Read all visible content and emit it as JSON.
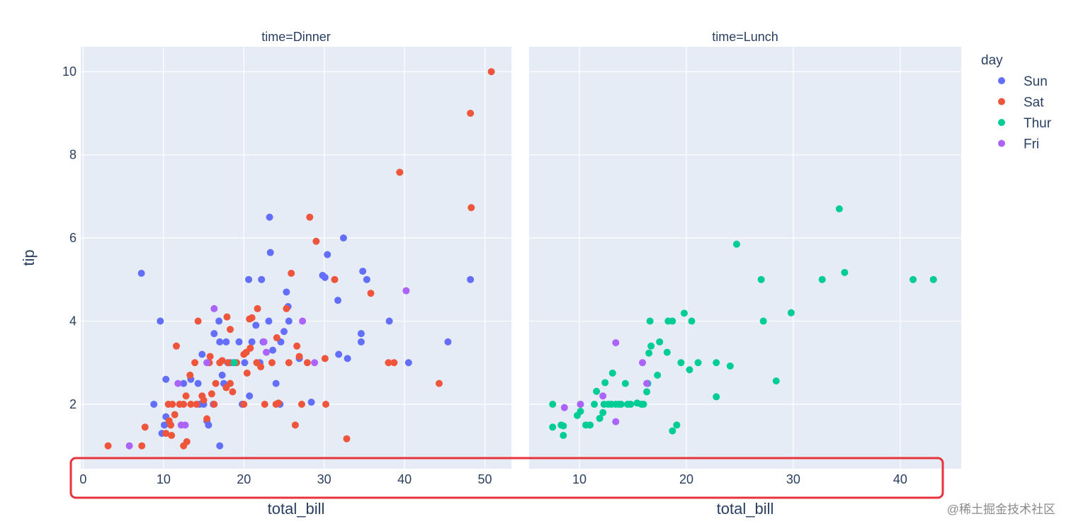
{
  "chart_data": {
    "type": "scatter",
    "y_label": "tip",
    "legend": {
      "title": "day",
      "placement": "right",
      "items": [
        {
          "name": "Sun",
          "color": "#636efa"
        },
        {
          "name": "Sat",
          "color": "#EF553B"
        },
        {
          "name": "Thur",
          "color": "#00cc96"
        },
        {
          "name": "Fri",
          "color": "#ab63fa"
        }
      ]
    },
    "ylim": [
      0.45,
      10.6
    ],
    "y_ticks": [
      "2",
      "4",
      "6",
      "8",
      "10"
    ],
    "grid": true,
    "facets": [
      {
        "title": "time=Dinner",
        "x_label": "total_bill",
        "xlim": [
          -0.3,
          53.3
        ],
        "x_ticks": [
          "0",
          "10",
          "20",
          "30",
          "40",
          "50"
        ],
        "series": [
          {
            "name": "Sun",
            "points": [
              [
                7.25,
                5.15
              ],
              [
                9.6,
                4.0
              ],
              [
                10.3,
                2.6
              ],
              [
                10.3,
                1.7
              ],
              [
                10.1,
                1.5
              ],
              [
                8.8,
                2.0
              ],
              [
                9.8,
                1.3
              ],
              [
                12.5,
                2.5
              ],
              [
                13.4,
                2.6
              ],
              [
                14.3,
                2.5
              ],
              [
                14.5,
                2.0
              ],
              [
                14.8,
                3.2
              ],
              [
                15.0,
                2.0
              ],
              [
                15.4,
                1.6
              ],
              [
                15.6,
                1.5
              ],
              [
                16.2,
                2.0
              ],
              [
                16.3,
                3.7
              ],
              [
                16.9,
                4.0
              ],
              [
                17.0,
                3.5
              ],
              [
                17.3,
                2.7
              ],
              [
                17.5,
                2.5
              ],
              [
                17.8,
                3.5
              ],
              [
                18.0,
                3.0
              ],
              [
                17.0,
                1.0
              ],
              [
                18.3,
                3.0
              ],
              [
                18.7,
                3.0
              ],
              [
                19.4,
                3.5
              ],
              [
                19.8,
                2.0
              ],
              [
                20.1,
                3.0
              ],
              [
                20.6,
                5.0
              ],
              [
                20.7,
                2.2
              ],
              [
                21.0,
                3.5
              ],
              [
                21.5,
                3.9
              ],
              [
                22.0,
                3.0
              ],
              [
                22.2,
                5.0
              ],
              [
                22.4,
                3.5
              ],
              [
                23.1,
                4.0
              ],
              [
                23.3,
                5.65
              ],
              [
                23.2,
                6.5
              ],
              [
                23.6,
                3.3
              ],
              [
                24.0,
                2.5
              ],
              [
                24.5,
                2.0
              ],
              [
                24.6,
                3.5
              ],
              [
                25.0,
                3.75
              ],
              [
                25.3,
                4.7
              ],
              [
                25.5,
                4.35
              ],
              [
                25.6,
                4.0
              ],
              [
                26.9,
                3.1
              ],
              [
                28.4,
                2.05
              ],
              [
                29.8,
                5.1
              ],
              [
                30.1,
                5.05
              ],
              [
                30.4,
                5.6
              ],
              [
                31.7,
                4.5
              ],
              [
                31.8,
                3.2
              ],
              [
                32.4,
                6.0
              ],
              [
                32.9,
                3.1
              ],
              [
                34.6,
                3.5
              ],
              [
                34.6,
                3.7
              ],
              [
                34.8,
                5.2
              ],
              [
                35.3,
                5.0
              ],
              [
                38.1,
                4.0
              ],
              [
                40.5,
                3.0
              ],
              [
                45.4,
                3.5
              ],
              [
                48.2,
                5.0
              ]
            ]
          },
          {
            "name": "Sat",
            "points": [
              [
                3.1,
                1.0
              ],
              [
                7.3,
                1.0
              ],
              [
                7.7,
                1.45
              ],
              [
                10.3,
                1.3
              ],
              [
                10.6,
                2.0
              ],
              [
                10.7,
                1.6
              ],
              [
                10.9,
                1.5
              ],
              [
                11.1,
                2.0
              ],
              [
                11.0,
                1.25
              ],
              [
                11.4,
                1.75
              ],
              [
                11.6,
                3.4
              ],
              [
                12.0,
                2.0
              ],
              [
                12.5,
                1.0
              ],
              [
                12.5,
                2.0
              ],
              [
                12.8,
                2.2
              ],
              [
                12.9,
                1.1
              ],
              [
                13.3,
                2.7
              ],
              [
                13.4,
                2.0
              ],
              [
                13.9,
                3.0
              ],
              [
                14.1,
                2.0
              ],
              [
                14.3,
                4.0
              ],
              [
                14.8,
                2.2
              ],
              [
                15.0,
                2.1
              ],
              [
                15.4,
                1.65
              ],
              [
                15.7,
                3.0
              ],
              [
                15.8,
                3.15
              ],
              [
                16.0,
                2.25
              ],
              [
                16.3,
                2.0
              ],
              [
                16.5,
                2.5
              ],
              [
                17.0,
                3.0
              ],
              [
                17.3,
                3.05
              ],
              [
                17.8,
                2.4
              ],
              [
                17.9,
                4.1
              ],
              [
                18.1,
                3.0
              ],
              [
                18.3,
                3.8
              ],
              [
                18.3,
                2.5
              ],
              [
                18.6,
                2.3
              ],
              [
                19.1,
                3.0
              ],
              [
                20.0,
                3.2
              ],
              [
                20.0,
                2.0
              ],
              [
                20.3,
                3.25
              ],
              [
                20.4,
                2.75
              ],
              [
                20.8,
                3.35
              ],
              [
                20.7,
                4.05
              ],
              [
                21.0,
                4.08
              ],
              [
                21.6,
                3.0
              ],
              [
                21.7,
                4.3
              ],
              [
                22.1,
                2.9
              ],
              [
                22.6,
                2.0
              ],
              [
                23.5,
                3.0
              ],
              [
                24.0,
                2.0
              ],
              [
                24.1,
                3.6
              ],
              [
                24.3,
                2.03
              ],
              [
                25.3,
                4.3
              ],
              [
                25.6,
                3.0
              ],
              [
                25.9,
                5.15
              ],
              [
                26.4,
                1.5
              ],
              [
                26.6,
                3.4
              ],
              [
                26.9,
                3.15
              ],
              [
                27.2,
                2.0
              ],
              [
                27.9,
                3.0
              ],
              [
                28.2,
                6.5
              ],
              [
                29.0,
                5.92
              ],
              [
                30.1,
                3.1
              ],
              [
                30.2,
                2.0
              ],
              [
                31.3,
                5.0
              ],
              [
                32.8,
                1.17
              ],
              [
                35.8,
                4.67
              ],
              [
                38.0,
                3.0
              ],
              [
                38.7,
                3.0
              ],
              [
                39.4,
                7.58
              ],
              [
                44.3,
                2.5
              ],
              [
                48.2,
                9.0
              ],
              [
                48.3,
                6.73
              ],
              [
                50.8,
                10.0
              ]
            ]
          },
          {
            "name": "Thur",
            "points": [
              [
                18.8,
                3.0
              ]
            ]
          },
          {
            "name": "Fri",
            "points": [
              [
                5.75,
                1.0
              ],
              [
                11.8,
                2.5
              ],
              [
                12.2,
                1.5
              ],
              [
                12.7,
                1.5
              ],
              [
                15.4,
                3.0
              ],
              [
                16.3,
                4.3
              ],
              [
                22.5,
                3.5
              ],
              [
                22.8,
                3.25
              ],
              [
                27.3,
                4.0
              ],
              [
                28.8,
                3.0
              ],
              [
                40.2,
                4.73
              ]
            ]
          }
        ]
      },
      {
        "title": "time=Lunch",
        "x_label": "total_bill",
        "xlim": [
          5.3,
          45.7
        ],
        "x_ticks": [
          "10",
          "20",
          "30",
          "40"
        ],
        "series": [
          {
            "name": "Sun",
            "points": []
          },
          {
            "name": "Sat",
            "points": []
          },
          {
            "name": "Thur",
            "points": [
              [
                7.5,
                2.0
              ],
              [
                7.5,
                1.45
              ],
              [
                8.3,
                1.5
              ],
              [
                8.5,
                1.25
              ],
              [
                8.5,
                1.48
              ],
              [
                9.8,
                1.73
              ],
              [
                10.1,
                2.0
              ],
              [
                10.1,
                1.83
              ],
              [
                10.6,
                1.5
              ],
              [
                11.0,
                1.5
              ],
              [
                11.4,
                2.0
              ],
              [
                11.6,
                2.31
              ],
              [
                11.9,
                1.66
              ],
              [
                12.2,
                1.8
              ],
              [
                12.3,
                2.0
              ],
              [
                12.4,
                2.52
              ],
              [
                12.7,
                2.0
              ],
              [
                13.0,
                2.0
              ],
              [
                13.1,
                2.75
              ],
              [
                13.4,
                2.0
              ],
              [
                13.7,
                2.0
              ],
              [
                13.9,
                2.0
              ],
              [
                14.3,
                2.5
              ],
              [
                14.5,
                2.0
              ],
              [
                14.8,
                2.0
              ],
              [
                15.4,
                2.03
              ],
              [
                15.8,
                2.0
              ],
              [
                16.0,
                2.0
              ],
              [
                16.3,
                2.3
              ],
              [
                16.4,
                2.5
              ],
              [
                16.5,
                3.23
              ],
              [
                16.6,
                4.0
              ],
              [
                16.7,
                3.4
              ],
              [
                17.3,
                2.7
              ],
              [
                17.5,
                3.5
              ],
              [
                18.2,
                3.25
              ],
              [
                18.3,
                4.0
              ],
              [
                18.7,
                4.0
              ],
              [
                18.7,
                1.36
              ],
              [
                19.1,
                1.5
              ],
              [
                19.5,
                3.0
              ],
              [
                19.8,
                4.19
              ],
              [
                20.3,
                2.83
              ],
              [
                20.5,
                4.0
              ],
              [
                21.1,
                3.0
              ],
              [
                22.8,
                3.0
              ],
              [
                22.8,
                2.18
              ],
              [
                24.1,
                2.92
              ],
              [
                24.7,
                5.85
              ],
              [
                27.0,
                5.0
              ],
              [
                27.2,
                4.0
              ],
              [
                28.4,
                2.56
              ],
              [
                29.8,
                4.2
              ],
              [
                32.7,
                5.0
              ],
              [
                34.3,
                6.7
              ],
              [
                34.8,
                5.17
              ],
              [
                41.2,
                5.0
              ],
              [
                43.1,
                5.0
              ]
            ]
          },
          {
            "name": "Fri",
            "points": [
              [
                8.6,
                1.92
              ],
              [
                10.1,
                2.0
              ],
              [
                12.2,
                2.2
              ],
              [
                13.4,
                3.48
              ],
              [
                13.4,
                1.58
              ],
              [
                15.9,
                3.0
              ],
              [
                16.3,
                2.5
              ]
            ]
          }
        ]
      }
    ]
  },
  "watermark": "@稀土掘金技术社区"
}
